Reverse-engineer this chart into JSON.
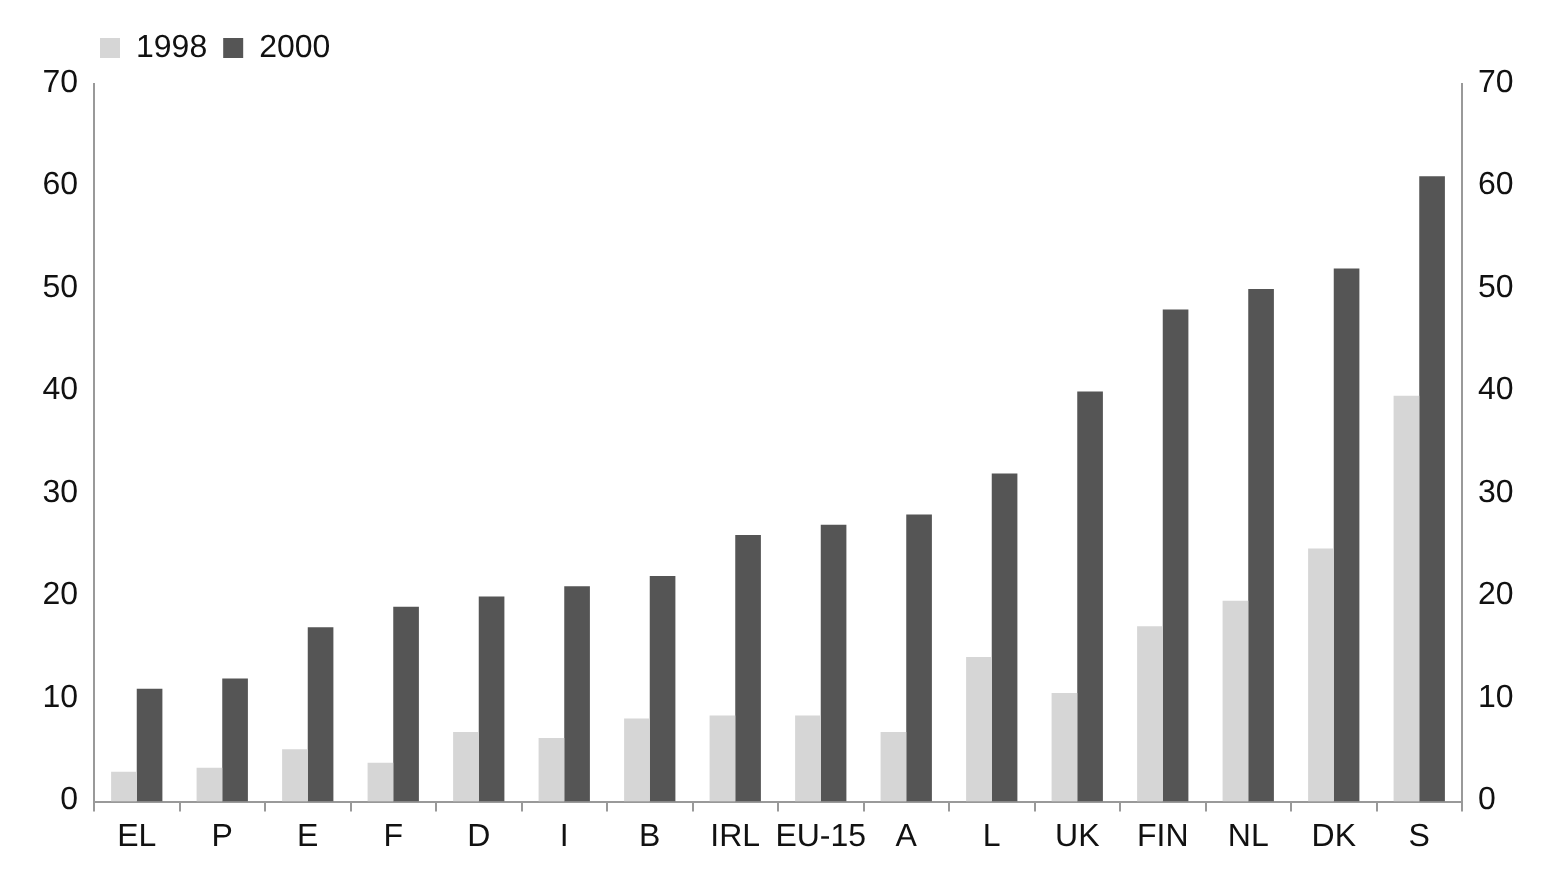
{
  "chart_data": {
    "type": "bar",
    "categories": [
      "EL",
      "P",
      "E",
      "F",
      "D",
      "I",
      "B",
      "IRL",
      "EU-15",
      "A",
      "L",
      "UK",
      "FIN",
      "NL",
      "DK",
      "S"
    ],
    "series": [
      {
        "name": "1998",
        "color": "#d6d6d6",
        "values": [
          2.9,
          3.3,
          5.1,
          3.8,
          6.8,
          6.2,
          8.1,
          8.4,
          8.4,
          6.8,
          14.1,
          10.6,
          17.1,
          19.6,
          24.7,
          39.6
        ]
      },
      {
        "name": "2000",
        "color": "#555555",
        "values": [
          11,
          12,
          17,
          19,
          20,
          21,
          22,
          26,
          27,
          28,
          32,
          40,
          48,
          50,
          52,
          61
        ]
      }
    ],
    "ylim": [
      0,
      70
    ],
    "yticks": [
      0,
      10,
      20,
      30,
      40,
      50,
      60,
      70
    ],
    "y2lim": [
      0,
      70
    ],
    "y2ticks": [
      0,
      10,
      20,
      30,
      40,
      50,
      60,
      70
    ],
    "grid": false,
    "legend": "top left"
  }
}
